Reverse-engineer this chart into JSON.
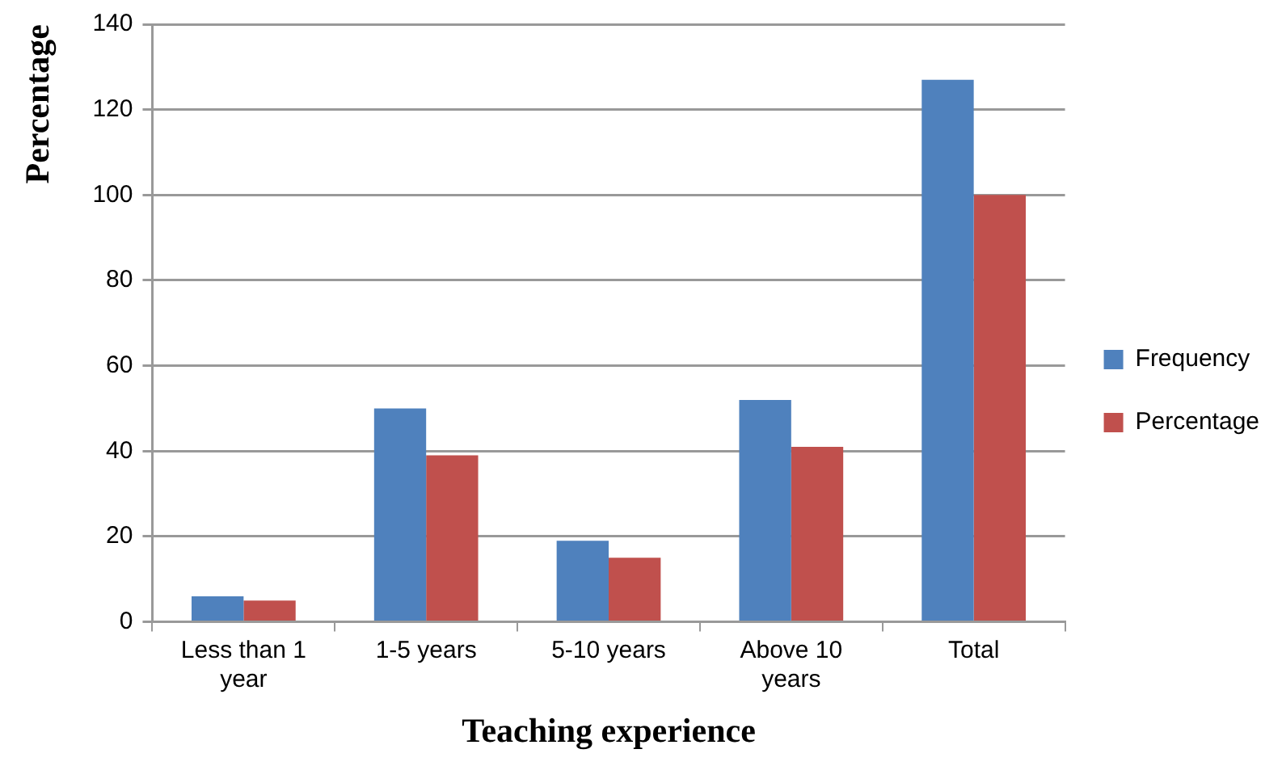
{
  "chart_data": {
    "type": "bar",
    "xlabel": "Teaching experience",
    "ylabel": "Percentage",
    "categories": [
      "Less than 1 year",
      "1-5 years",
      "5-10 years",
      "Above 10 years",
      "Total"
    ],
    "series": [
      {
        "name": "Frequency",
        "color": "#4f81bd",
        "values": [
          6,
          50,
          19,
          52,
          127
        ]
      },
      {
        "name": "Percentage",
        "color": "#c0504d",
        "values": [
          5,
          39,
          15,
          41,
          100
        ]
      }
    ],
    "ylim": [
      0,
      140
    ],
    "yticks": [
      0,
      20,
      40,
      60,
      80,
      100,
      120,
      140
    ],
    "grid": "y",
    "legend": "right"
  }
}
